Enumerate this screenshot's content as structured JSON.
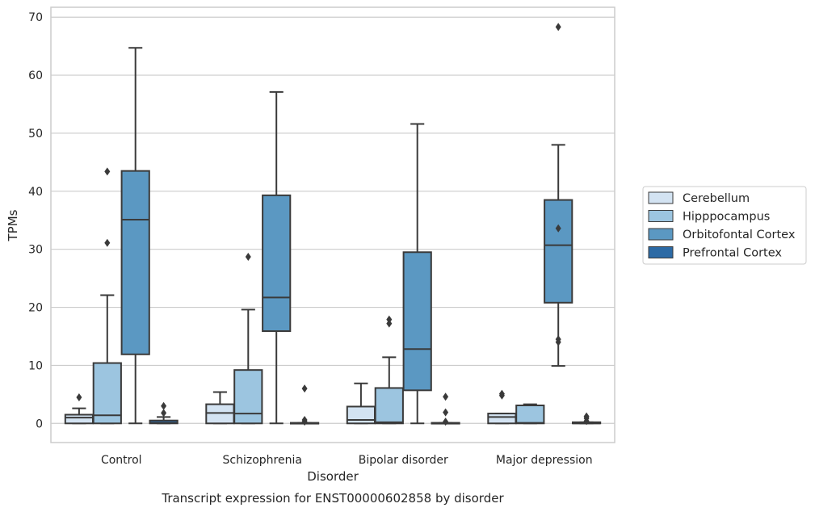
{
  "chart_data": {
    "type": "boxplot",
    "xlabel": "Disorder",
    "ylabel": "TPMs",
    "caption": "Transcript expression for ENST00000602858 by disorder",
    "ylim": [
      -3.3,
      71.7
    ],
    "yticks": [
      0,
      10,
      20,
      30,
      40,
      50,
      60,
      70
    ],
    "grid": "horizontal",
    "legend_position": "right",
    "categories": [
      "Control",
      "Schizophrenia",
      "Bipolar disorder",
      "Major depression"
    ],
    "series": [
      {
        "name": "Cerebellum",
        "color": "#d3e3f2",
        "boxes": [
          {
            "whisker_low": 0,
            "q1": 0,
            "median": 1.0,
            "q3": 1.5,
            "whisker_high": 2.6,
            "outliers": [
              4.5
            ]
          },
          {
            "whisker_low": 0,
            "q1": 0,
            "median": 1.8,
            "q3": 3.3,
            "whisker_high": 5.4,
            "outliers": []
          },
          {
            "whisker_low": 0,
            "q1": 0,
            "median": 0.6,
            "q3": 2.9,
            "whisker_high": 6.9,
            "outliers": []
          },
          {
            "whisker_low": 0,
            "q1": 0,
            "median": 1.1,
            "q3": 1.7,
            "whisker_high": 1.7,
            "outliers": [
              4.8,
              5.1
            ]
          }
        ]
      },
      {
        "name": "Hipppocampus",
        "color": "#9cc5e0",
        "boxes": [
          {
            "whisker_low": 0,
            "q1": 0,
            "median": 1.4,
            "q3": 10.4,
            "whisker_high": 22.1,
            "outliers": [
              31.1,
              43.4
            ]
          },
          {
            "whisker_low": 0,
            "q1": 0,
            "median": 1.7,
            "q3": 9.2,
            "whisker_high": 19.6,
            "outliers": [
              28.7
            ]
          },
          {
            "whisker_low": 0,
            "q1": 0,
            "median": 0.2,
            "q3": 6.1,
            "whisker_high": 11.4,
            "outliers": [
              17.2,
              17.9
            ]
          },
          {
            "whisker_low": 0,
            "q1": 0,
            "median": 0.1,
            "q3": 3.1,
            "whisker_high": 3.3,
            "outliers": []
          }
        ]
      },
      {
        "name": "Orbitofontal Cortex",
        "color": "#5b98c2",
        "boxes": [
          {
            "whisker_low": 0,
            "q1": 11.9,
            "median": 35.1,
            "q3": 43.5,
            "whisker_high": 64.7,
            "outliers": []
          },
          {
            "whisker_low": 0,
            "q1": 15.9,
            "median": 21.7,
            "q3": 39.3,
            "whisker_high": 57.1,
            "outliers": []
          },
          {
            "whisker_low": 0,
            "q1": 5.7,
            "median": 12.8,
            "q3": 29.5,
            "whisker_high": 51.6,
            "outliers": []
          },
          {
            "whisker_low": 9.9,
            "q1": 20.8,
            "median": 30.7,
            "q3": 38.5,
            "whisker_high": 48.0,
            "outliers": [
              14.0,
              14.5,
              33.6,
              68.3
            ]
          }
        ]
      },
      {
        "name": "Prefrontal Cortex",
        "color": "#2c6aa5",
        "boxes": [
          {
            "whisker_low": 0,
            "q1": 0,
            "median": 0.1,
            "q3": 0.5,
            "whisker_high": 1.1,
            "outliers": [
              1.8,
              3.0
            ]
          },
          {
            "whisker_low": 0,
            "q1": 0,
            "median": 0,
            "q3": 0.1,
            "whisker_high": 0.1,
            "outliers": [
              0.3,
              0.6,
              6.0
            ]
          },
          {
            "whisker_low": 0,
            "q1": 0,
            "median": 0,
            "q3": 0.1,
            "whisker_high": 0.1,
            "outliers": [
              0.3,
              1.9,
              4.6
            ]
          },
          {
            "whisker_low": 0,
            "q1": 0,
            "median": 0,
            "q3": 0.2,
            "whisker_high": 0.2,
            "outliers": [
              0.4,
              0.9,
              1.2
            ]
          }
        ]
      }
    ]
  }
}
